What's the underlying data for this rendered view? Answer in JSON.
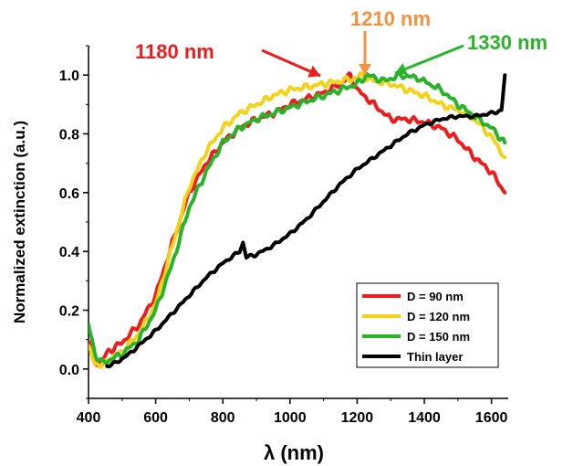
{
  "chart_data": {
    "type": "line",
    "xlabel": "λ (nm)",
    "ylabel": "Normalized extinction (a.u.)",
    "xlim": [
      400,
      1650
    ],
    "ylim": [
      -0.1,
      1.1
    ],
    "xticks": [
      "400",
      "600",
      "800",
      "1000",
      "1200",
      "1400",
      "1600"
    ],
    "yticks": [
      "0.0",
      "0.2",
      "0.4",
      "0.6",
      "0.8",
      "1.0"
    ],
    "legend_position": "bottom-right",
    "series": [
      {
        "name": "D = 90 nm",
        "color": "#ee1c1c",
        "points": [
          [
            400,
            0.1
          ],
          [
            420,
            0.02
          ],
          [
            440,
            0.03
          ],
          [
            460,
            0.06
          ],
          [
            500,
            0.09
          ],
          [
            550,
            0.15
          ],
          [
            600,
            0.25
          ],
          [
            650,
            0.43
          ],
          [
            700,
            0.6
          ],
          [
            750,
            0.7
          ],
          [
            800,
            0.77
          ],
          [
            850,
            0.82
          ],
          [
            900,
            0.85
          ],
          [
            950,
            0.87
          ],
          [
            1000,
            0.9
          ],
          [
            1050,
            0.92
          ],
          [
            1100,
            0.94
          ],
          [
            1150,
            0.97
          ],
          [
            1180,
            1.0
          ],
          [
            1200,
            0.95
          ],
          [
            1250,
            0.9
          ],
          [
            1300,
            0.85
          ],
          [
            1350,
            0.85
          ],
          [
            1400,
            0.84
          ],
          [
            1450,
            0.82
          ],
          [
            1500,
            0.78
          ],
          [
            1550,
            0.72
          ],
          [
            1600,
            0.67
          ],
          [
            1640,
            0.6
          ]
        ]
      },
      {
        "name": "D = 120 nm",
        "color": "#f2d31a",
        "points": [
          [
            400,
            0.07
          ],
          [
            420,
            0.02
          ],
          [
            440,
            0.01
          ],
          [
            460,
            0.03
          ],
          [
            500,
            0.06
          ],
          [
            550,
            0.12
          ],
          [
            600,
            0.22
          ],
          [
            650,
            0.42
          ],
          [
            700,
            0.62
          ],
          [
            750,
            0.74
          ],
          [
            800,
            0.82
          ],
          [
            850,
            0.87
          ],
          [
            900,
            0.9
          ],
          [
            950,
            0.93
          ],
          [
            1000,
            0.95
          ],
          [
            1050,
            0.96
          ],
          [
            1100,
            0.97
          ],
          [
            1150,
            0.98
          ],
          [
            1200,
            0.99
          ],
          [
            1210,
            1.0
          ],
          [
            1250,
            0.98
          ],
          [
            1300,
            0.97
          ],
          [
            1350,
            0.95
          ],
          [
            1400,
            0.93
          ],
          [
            1450,
            0.9
          ],
          [
            1500,
            0.88
          ],
          [
            1550,
            0.85
          ],
          [
            1600,
            0.79
          ],
          [
            1640,
            0.72
          ]
        ]
      },
      {
        "name": "D = 150 nm",
        "color": "#2bb22b",
        "points": [
          [
            400,
            0.15
          ],
          [
            420,
            0.05
          ],
          [
            440,
            0.02
          ],
          [
            460,
            0.03
          ],
          [
            500,
            0.05
          ],
          [
            550,
            0.1
          ],
          [
            600,
            0.2
          ],
          [
            650,
            0.36
          ],
          [
            700,
            0.55
          ],
          [
            750,
            0.67
          ],
          [
            800,
            0.77
          ],
          [
            850,
            0.82
          ],
          [
            900,
            0.85
          ],
          [
            950,
            0.87
          ],
          [
            1000,
            0.89
          ],
          [
            1050,
            0.91
          ],
          [
            1100,
            0.93
          ],
          [
            1150,
            0.95
          ],
          [
            1200,
            0.97
          ],
          [
            1230,
            1.0
          ],
          [
            1280,
            0.98
          ],
          [
            1330,
            1.0
          ],
          [
            1380,
            0.99
          ],
          [
            1450,
            0.95
          ],
          [
            1500,
            0.9
          ],
          [
            1550,
            0.86
          ],
          [
            1600,
            0.82
          ],
          [
            1640,
            0.77
          ]
        ]
      },
      {
        "name": "Thin layer",
        "color": "#000000",
        "points": [
          [
            455,
            0.01
          ],
          [
            480,
            0.02
          ],
          [
            520,
            0.05
          ],
          [
            560,
            0.09
          ],
          [
            600,
            0.13
          ],
          [
            650,
            0.19
          ],
          [
            700,
            0.25
          ],
          [
            750,
            0.31
          ],
          [
            800,
            0.36
          ],
          [
            850,
            0.4
          ],
          [
            860,
            0.43
          ],
          [
            870,
            0.38
          ],
          [
            900,
            0.39
          ],
          [
            950,
            0.42
          ],
          [
            1000,
            0.46
          ],
          [
            1050,
            0.51
          ],
          [
            1100,
            0.57
          ],
          [
            1150,
            0.63
          ],
          [
            1200,
            0.68
          ],
          [
            1250,
            0.72
          ],
          [
            1300,
            0.76
          ],
          [
            1350,
            0.8
          ],
          [
            1400,
            0.83
          ],
          [
            1450,
            0.85
          ],
          [
            1500,
            0.86
          ],
          [
            1550,
            0.86
          ],
          [
            1600,
            0.87
          ],
          [
            1630,
            0.88
          ],
          [
            1640,
            1.0
          ]
        ]
      }
    ],
    "annotations": [
      {
        "text": "1180 nm",
        "color": "#ee1c1c",
        "x": 1180,
        "y": 1.0
      },
      {
        "text": "1210 nm",
        "color": "#f5913f",
        "x": 1210,
        "y": 1.0
      },
      {
        "text": "1330 nm",
        "color": "#2bb22b",
        "x": 1330,
        "y": 1.0
      }
    ]
  }
}
